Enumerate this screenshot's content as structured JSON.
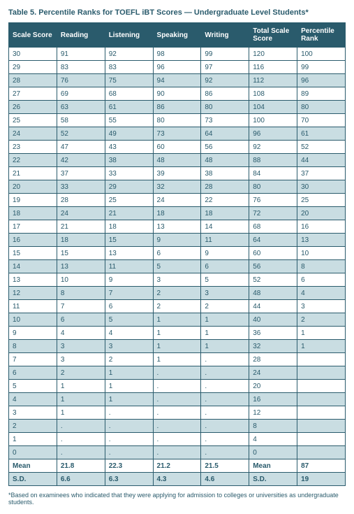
{
  "title": "Table 5. Percentile Ranks for TOEFL iBT Scores — Undergraduate Level Students*",
  "footnote": "*Based on examinees who indicated that they were applying for admission to colleges or universities as undergraduate students.",
  "columns": [
    "Scale Score",
    "Reading",
    "Listening",
    "Speaking",
    "Writing",
    "Total Scale Score",
    "Percentile Rank"
  ],
  "rows": [
    {
      "shaded": false,
      "cells": [
        "30",
        "91",
        "92",
        "98",
        "99",
        "120",
        "100"
      ]
    },
    {
      "shaded": false,
      "cells": [
        "29",
        "83",
        "83",
        "96",
        "97",
        "116",
        "99"
      ]
    },
    {
      "shaded": true,
      "cells": [
        "28",
        "76",
        "75",
        "94",
        "92",
        "112",
        "96"
      ]
    },
    {
      "shaded": false,
      "cells": [
        "27",
        "69",
        "68",
        "90",
        "86",
        "108",
        "89"
      ]
    },
    {
      "shaded": true,
      "cells": [
        "26",
        "63",
        "61",
        "86",
        "80",
        "104",
        "80"
      ]
    },
    {
      "shaded": false,
      "cells": [
        "25",
        "58",
        "55",
        "80",
        "73",
        "100",
        "70"
      ]
    },
    {
      "shaded": true,
      "cells": [
        "24",
        "52",
        "49",
        "73",
        "64",
        "96",
        "61"
      ]
    },
    {
      "shaded": false,
      "cells": [
        "23",
        "47",
        "43",
        "60",
        "56",
        "92",
        "52"
      ]
    },
    {
      "shaded": true,
      "cells": [
        "22",
        "42",
        "38",
        "48",
        "48",
        "88",
        "44"
      ]
    },
    {
      "shaded": false,
      "cells": [
        "21",
        "37",
        "33",
        "39",
        "38",
        "84",
        "37"
      ]
    },
    {
      "shaded": true,
      "cells": [
        "20",
        "33",
        "29",
        "32",
        "28",
        "80",
        "30"
      ]
    },
    {
      "shaded": false,
      "cells": [
        "19",
        "28",
        "25",
        "24",
        "22",
        "76",
        "25"
      ]
    },
    {
      "shaded": true,
      "cells": [
        "18",
        "24",
        "21",
        "18",
        "18",
        "72",
        "20"
      ]
    },
    {
      "shaded": false,
      "cells": [
        "17",
        "21",
        "18",
        "13",
        "14",
        "68",
        "16"
      ]
    },
    {
      "shaded": true,
      "cells": [
        "16",
        "18",
        "15",
        "9",
        "11",
        "64",
        "13"
      ]
    },
    {
      "shaded": false,
      "cells": [
        "15",
        "15",
        "13",
        "6",
        "9",
        "60",
        "10"
      ]
    },
    {
      "shaded": true,
      "cells": [
        "14",
        "13",
        "11",
        "5",
        "6",
        "56",
        "8"
      ]
    },
    {
      "shaded": false,
      "cells": [
        "13",
        "10",
        "9",
        "3",
        "5",
        "52",
        "6"
      ]
    },
    {
      "shaded": true,
      "cells": [
        "12",
        "8",
        "7",
        "2",
        "3",
        "48",
        "4"
      ]
    },
    {
      "shaded": false,
      "cells": [
        "11",
        "7",
        "6",
        "2",
        "2",
        "44",
        "3"
      ]
    },
    {
      "shaded": true,
      "cells": [
        "10",
        "6",
        "5",
        "1",
        "1",
        "40",
        "2"
      ]
    },
    {
      "shaded": false,
      "cells": [
        "9",
        "4",
        "4",
        "1",
        "1",
        "36",
        "1"
      ]
    },
    {
      "shaded": true,
      "cells": [
        "8",
        "3",
        "3",
        "1",
        "1",
        "32",
        "1"
      ]
    },
    {
      "shaded": false,
      "cells": [
        "7",
        "3",
        "2",
        "1",
        ".",
        "28",
        ""
      ]
    },
    {
      "shaded": true,
      "cells": [
        "6",
        "2",
        "1",
        ".",
        ".",
        "24",
        ""
      ]
    },
    {
      "shaded": false,
      "cells": [
        "5",
        "1",
        "1",
        ".",
        ".",
        "20",
        ""
      ]
    },
    {
      "shaded": true,
      "cells": [
        "4",
        "1",
        "1",
        ".",
        ".",
        "16",
        ""
      ]
    },
    {
      "shaded": false,
      "cells": [
        "3",
        "1",
        ".",
        ".",
        ".",
        "12",
        ""
      ]
    },
    {
      "shaded": true,
      "cells": [
        "2",
        ".",
        ".",
        ".",
        ".",
        "8",
        ""
      ]
    },
    {
      "shaded": false,
      "cells": [
        "1",
        ".",
        ".",
        ".",
        ".",
        "4",
        ""
      ]
    },
    {
      "shaded": true,
      "cells": [
        "0",
        ".",
        ".",
        ".",
        ".",
        "0",
        ""
      ]
    }
  ],
  "summary": [
    {
      "label": "Mean",
      "cells": [
        "Mean",
        "21.8",
        "22.3",
        "21.2",
        "21.5",
        "Mean",
        "87"
      ],
      "shaded": false
    },
    {
      "label": "S.D.",
      "cells": [
        "S.D.",
        "6.6",
        "6.3",
        "4.3",
        "4.6",
        "S.D.",
        "19"
      ],
      "shaded": true
    }
  ]
}
